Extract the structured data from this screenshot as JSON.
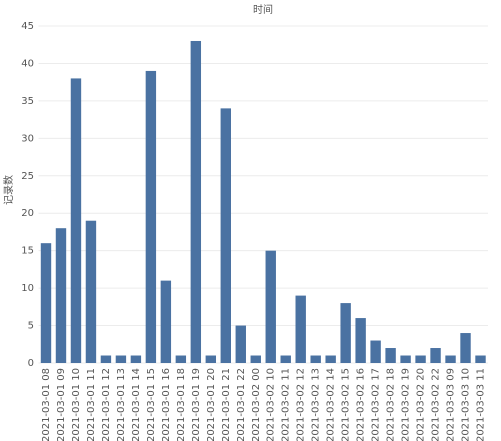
{
  "chart_data": {
    "type": "bar",
    "title": "时间",
    "y_label": "记录数",
    "categories": [
      "2021-03-01 08",
      "2021-03-01 09",
      "2021-03-01 10",
      "2021-03-01 11",
      "2021-03-01 12",
      "2021-03-01 13",
      "2021-03-01 14",
      "2021-03-01 15",
      "2021-03-01 16",
      "2021-03-01 18",
      "2021-03-01 19",
      "2021-03-01 20",
      "2021-03-01 21",
      "2021-03-01 22",
      "2021-03-02 00",
      "2021-03-02 10",
      "2021-03-02 11",
      "2021-03-02 12",
      "2021-03-02 13",
      "2021-03-02 14",
      "2021-03-02 15",
      "2021-03-02 16",
      "2021-03-02 17",
      "2021-03-02 18",
      "2021-03-02 19",
      "2021-03-02 20",
      "2021-03-02 22",
      "2021-03-03 09",
      "2021-03-03 10",
      "2021-03-03 11"
    ],
    "values": [
      16,
      18,
      38,
      19,
      1,
      1,
      1,
      39,
      11,
      1,
      43,
      1,
      34,
      5,
      1,
      15,
      1,
      9,
      1,
      1,
      8,
      6,
      3,
      2,
      1,
      1,
      2,
      1,
      4,
      1
    ],
    "color": "#4a72a2",
    "ylim": [
      0,
      45
    ],
    "yticks": [
      0,
      5,
      10,
      15,
      20,
      25,
      30,
      35,
      40,
      45
    ],
    "grid": true
  }
}
